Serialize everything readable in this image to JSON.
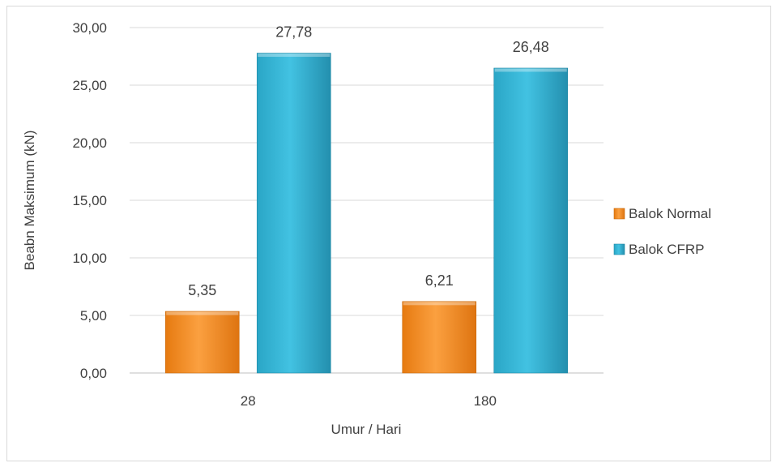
{
  "chart_data": {
    "type": "bar",
    "categories": [
      "28",
      "180"
    ],
    "series": [
      {
        "name": "Balok Normal",
        "values": [
          5.35,
          6.21
        ],
        "color": "#f28c1e",
        "value_labels": [
          "5,35",
          "6,21"
        ]
      },
      {
        "name": "Balok CFRP",
        "values": [
          27.78,
          26.48
        ],
        "color": "#2fb2d2",
        "value_labels": [
          "27,78",
          "26,48"
        ]
      }
    ],
    "title": "",
    "xlabel": "Umur / Hari",
    "ylabel": "Beabn Maksimum (kN)",
    "ylim": [
      0,
      30
    ],
    "yticks": [
      0,
      5,
      10,
      15,
      20,
      25,
      30
    ],
    "ytick_labels": [
      "0,00",
      "5,00",
      "10,00",
      "15,00",
      "20,00",
      "25,00",
      "30,00"
    ],
    "grid": true,
    "legend_position": "right"
  }
}
